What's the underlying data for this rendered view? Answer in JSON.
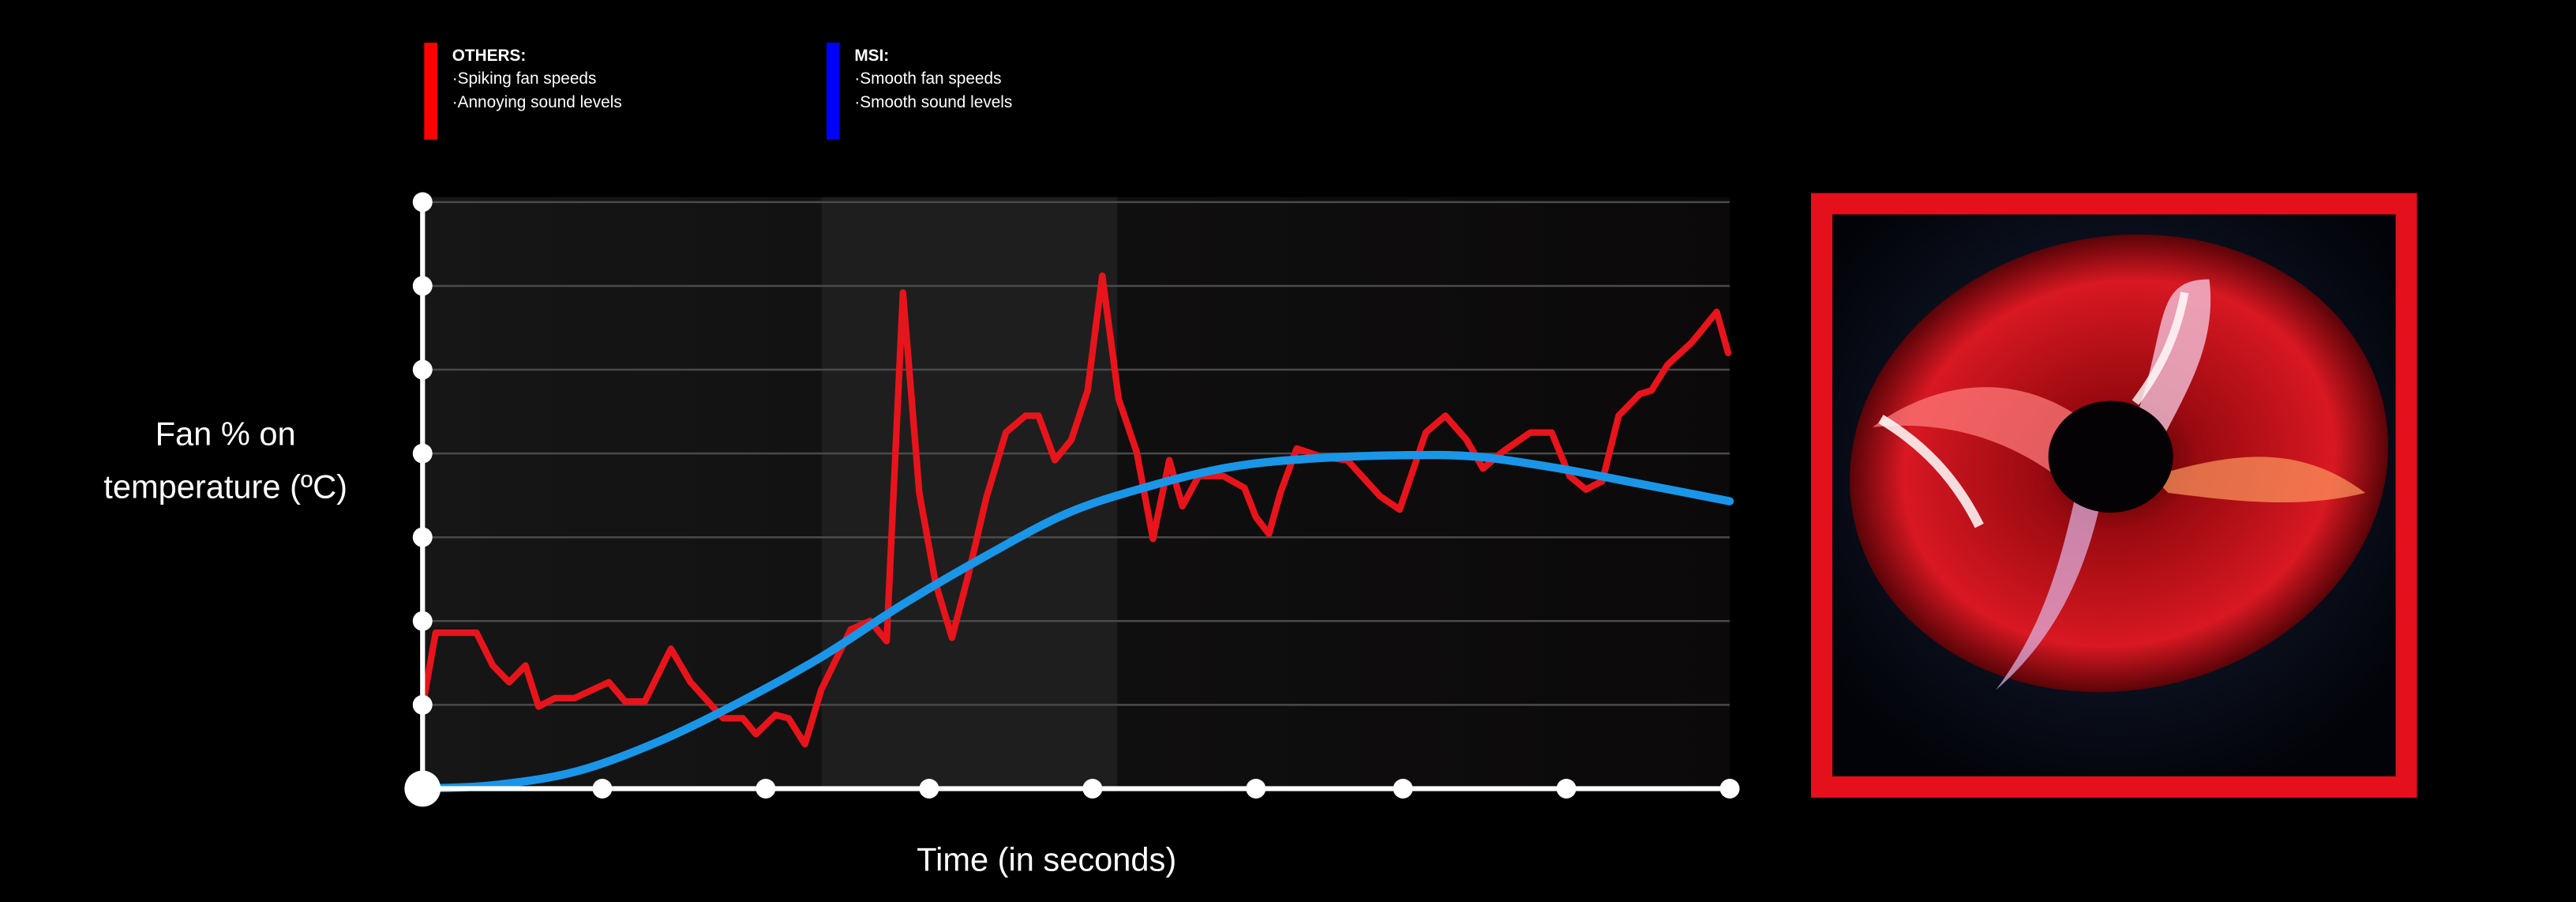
{
  "chart_data": {
    "type": "line",
    "xlabel": "Time (in seconds)",
    "ylabel": [
      "Fan % on",
      "temperature (ºC)"
    ],
    "xlim": [
      0,
      8
    ],
    "ylim": [
      0,
      7
    ],
    "xticks": [
      0,
      1.1,
      2.1,
      3.1,
      4.1,
      5.1,
      6,
      7,
      8
    ],
    "yticks": [
      0,
      1,
      2,
      3,
      4,
      5,
      6,
      7
    ],
    "grid": true,
    "series": [
      {
        "name": "OTHERS:",
        "notes": [
          "·Spiking fan speeds",
          "·Annoying sound levels"
        ],
        "color": "#e8141b",
        "legend_color": "#ff0000",
        "smooth": false,
        "x": [
          0,
          0.08,
          0.33,
          0.43,
          0.53,
          0.63,
          0.71,
          0.81,
          0.93,
          1.14,
          1.24,
          1.36,
          1.52,
          1.64,
          1.84,
          1.96,
          2.04,
          2.16,
          2.24,
          2.34,
          2.44,
          2.62,
          2.74,
          2.84,
          2.94,
          3.04,
          3.14,
          3.24,
          3.34,
          3.45,
          3.57,
          3.69,
          3.77,
          3.87,
          3.97,
          4.07,
          4.16,
          4.26,
          4.37,
          4.47,
          4.57,
          4.65,
          4.75,
          4.9,
          5.03,
          5.1,
          5.18,
          5.25,
          5.35,
          5.5,
          5.66,
          5.86,
          5.98,
          6.14,
          6.26,
          6.39,
          6.49,
          6.61,
          6.78,
          6.91,
          7.02,
          7.12,
          7.22,
          7.32,
          7.45,
          7.52,
          7.62,
          7.77,
          7.92,
          7.99
        ],
        "values": [
          0.98,
          1.86,
          1.86,
          1.47,
          1.27,
          1.47,
          0.98,
          1.08,
          1.08,
          1.27,
          1.04,
          1.04,
          1.67,
          1.27,
          0.84,
          0.84,
          0.65,
          0.88,
          0.84,
          0.53,
          1.18,
          1.9,
          2.0,
          1.76,
          5.92,
          3.53,
          2.45,
          1.8,
          2.55,
          3.47,
          4.25,
          4.45,
          4.45,
          3.92,
          4.16,
          4.75,
          6.12,
          4.65,
          4.02,
          2.98,
          3.92,
          3.37,
          3.73,
          3.73,
          3.59,
          3.24,
          3.04,
          3.53,
          4.06,
          3.96,
          3.92,
          3.49,
          3.33,
          4.25,
          4.45,
          4.16,
          3.82,
          4.02,
          4.25,
          4.25,
          3.73,
          3.57,
          3.67,
          4.45,
          4.71,
          4.75,
          5.06,
          5.33,
          5.69,
          5.2
        ]
      },
      {
        "name": "MSI:",
        "notes": [
          "·Smooth fan speeds",
          "·Smooth sound levels"
        ],
        "color": "#1a96e8",
        "legend_color": "#0000ff",
        "smooth": true,
        "x": [
          0,
          0.43,
          0.93,
          1.43,
          1.93,
          2.44,
          2.94,
          3.45,
          3.95,
          4.45,
          4.95,
          5.45,
          6.03,
          6.46,
          6.96,
          7.47,
          8
        ],
        "values": [
          0,
          0.04,
          0.2,
          0.55,
          1.02,
          1.57,
          2.2,
          2.78,
          3.29,
          3.61,
          3.84,
          3.94,
          3.98,
          3.96,
          3.82,
          3.63,
          3.43
        ]
      }
    ]
  }
}
